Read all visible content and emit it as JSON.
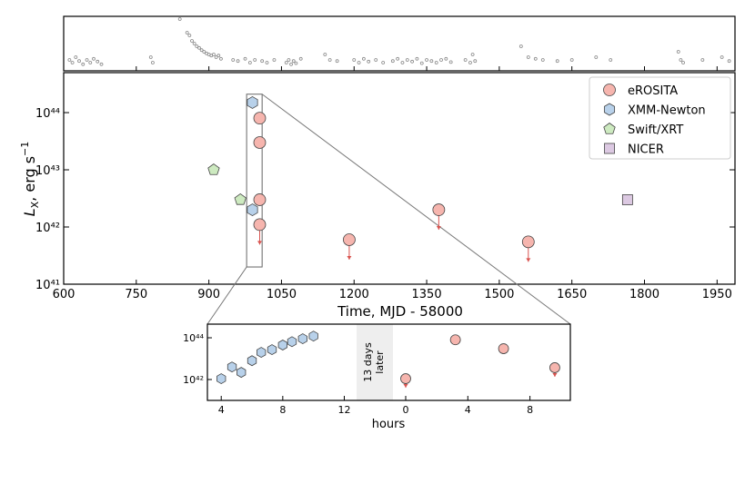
{
  "chart_data": {
    "type": "scatter",
    "xlabel": "Time, MJD - 58000",
    "ylabel": [
      "L",
      "X",
      ", erg s",
      "−1"
    ],
    "log_y": true,
    "xlim": [
      600,
      1987
    ],
    "xticks": [
      600,
      750,
      900,
      1050,
      1200,
      1350,
      1500,
      1650,
      1800,
      1950
    ],
    "ylim": [
      1e+41,
      5e+44
    ],
    "yticks": [
      {
        "value": 1e+41,
        "label": "10⁴¹"
      },
      {
        "value": 1e+42,
        "label": "10⁴²"
      },
      {
        "value": 1e+43,
        "label": "10⁴³"
      },
      {
        "value": 1e+44,
        "label": "10⁴⁴"
      }
    ],
    "legend": "upper right",
    "series": [
      {
        "name": "eROSITA",
        "color": "#f6b5ae",
        "marker": "circle",
        "x": [
          1005,
          1005,
          1005,
          1005,
          1190,
          1375,
          1560
        ],
        "values": [
          8e+43,
          3e+43,
          3e+42,
          1.1e+42,
          6e+41,
          2e+42,
          5.5e+41
        ],
        "upper_limits": [
          false,
          false,
          false,
          true,
          true,
          true,
          true
        ]
      },
      {
        "name": "XMM-Newton",
        "color": "#b8d1ea",
        "marker": "hexagon",
        "x": [
          990,
          990
        ],
        "values": [
          1.5e+44,
          2e+42
        ],
        "upper_limits": [
          false,
          false
        ]
      },
      {
        "name": "Swift/XRT",
        "color": "#cdeac0",
        "marker": "pentagon",
        "x": [
          910,
          965
        ],
        "values": [
          1e+43,
          3e+42
        ],
        "upper_limits": [
          false,
          false
        ]
      },
      {
        "name": "NICER",
        "color": "#dcc9e2",
        "marker": "square",
        "x": [
          1765
        ],
        "values": [
          3e+42
        ],
        "upper_limits": [
          false
        ]
      }
    ],
    "zoom_box": {
      "x": [
        978,
        1010
      ],
      "y": [
        2e+41,
        2.1e+44
      ]
    },
    "top_panel": {
      "ylim": [
        0,
        1
      ],
      "color": "#888888",
      "x": [
        612,
        618,
        625,
        632,
        640,
        648,
        655,
        662,
        670,
        678,
        780,
        784,
        840,
        855,
        860,
        865,
        870,
        875,
        880,
        885,
        890,
        895,
        900,
        905,
        910,
        915,
        920,
        925,
        950,
        960,
        975,
        985,
        995,
        1010,
        1020,
        1035,
        1060,
        1065,
        1070,
        1075,
        1080,
        1090,
        1140,
        1150,
        1165,
        1200,
        1210,
        1220,
        1230,
        1245,
        1260,
        1280,
        1290,
        1300,
        1310,
        1320,
        1330,
        1340,
        1350,
        1360,
        1370,
        1380,
        1390,
        1400,
        1430,
        1440,
        1445,
        1450,
        1545,
        1560,
        1575,
        1590,
        1620,
        1650,
        1700,
        1730,
        1870,
        1875,
        1880,
        1920,
        1960,
        1975
      ],
      "y": [
        0.2,
        0.15,
        0.25,
        0.18,
        0.12,
        0.2,
        0.15,
        0.22,
        0.17,
        0.12,
        0.25,
        0.15,
        0.95,
        0.7,
        0.65,
        0.55,
        0.5,
        0.45,
        0.42,
        0.38,
        0.35,
        0.32,
        0.3,
        0.28,
        0.3,
        0.25,
        0.28,
        0.22,
        0.2,
        0.18,
        0.22,
        0.15,
        0.2,
        0.18,
        0.15,
        0.2,
        0.15,
        0.2,
        0.12,
        0.18,
        0.14,
        0.22,
        0.3,
        0.2,
        0.18,
        0.2,
        0.15,
        0.22,
        0.17,
        0.2,
        0.15,
        0.18,
        0.22,
        0.15,
        0.2,
        0.17,
        0.22,
        0.14,
        0.2,
        0.18,
        0.15,
        0.2,
        0.22,
        0.16,
        0.2,
        0.15,
        0.3,
        0.18,
        0.45,
        0.25,
        0.22,
        0.2,
        0.18,
        0.2,
        0.25,
        0.2,
        0.35,
        0.2,
        0.15,
        0.2,
        0.25,
        0.18
      ]
    },
    "inset": {
      "xlabel": "hours",
      "gap_label": [
        "13 days",
        "later"
      ],
      "ylim": [
        1e+41,
        4.5e+44
      ],
      "yticks": [
        {
          "value": 1e+42,
          "label": "10⁴²"
        },
        {
          "value": 1e+44,
          "label": "10⁴⁴"
        }
      ],
      "segments": [
        {
          "xlim": [
            3.1,
            12.8
          ],
          "xticks": [
            4,
            8,
            12
          ]
        },
        {
          "xlim": [
            -0.82,
            10.6
          ],
          "xticks": [
            0,
            4,
            8
          ]
        }
      ],
      "series": [
        {
          "segment": 0,
          "color": "#b8d1ea",
          "marker": "hexagon",
          "x": [
            4,
            4.7,
            5.3,
            6,
            6.6,
            7.3,
            8,
            8.6,
            9.3,
            10
          ],
          "values": [
            1.1e+42,
            4e+42,
            2.2e+42,
            8e+42,
            2e+43,
            2.7e+43,
            4.5e+43,
            6.5e+43,
            9e+43,
            1.2e+44
          ],
          "upper_limits": [
            false,
            false,
            false,
            false,
            false,
            false,
            false,
            false,
            false,
            false
          ]
        },
        {
          "segment": 1,
          "color": "#f6b5ae",
          "marker": "circle",
          "x": [
            0,
            3.2,
            6.3,
            9.6
          ],
          "values": [
            1.1e+42,
            8e+43,
            3e+43,
            3.7e+42
          ],
          "upper_limits": [
            true,
            false,
            false,
            true
          ]
        }
      ]
    }
  }
}
